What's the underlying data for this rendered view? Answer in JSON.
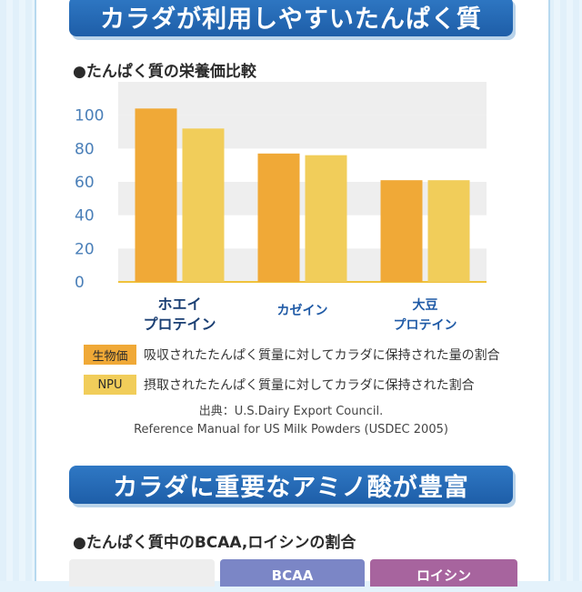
{
  "banner_top": {
    "title": "カラダが利用しやすいたんぱく質"
  },
  "section1": {
    "title": "●たんぱく質の栄養価比較"
  },
  "chart_data": {
    "type": "bar",
    "categories": [
      "ホエイ\nプロテイン",
      "カゼイン",
      "大豆\nプロテイン"
    ],
    "series": [
      {
        "name": "生物価",
        "values": [
          104,
          77,
          61
        ],
        "color": "#f0a937"
      },
      {
        "name": "NPU",
        "values": [
          92,
          76,
          61
        ],
        "color": "#f1cd5a"
      }
    ],
    "yticks": [
      0,
      20,
      40,
      60,
      80,
      100
    ],
    "ylim": [
      0,
      120
    ],
    "grid_bands": true,
    "legend_position": "bottom"
  },
  "legend": [
    {
      "label": "生物価",
      "description": "吸収されたたんぱく質量に対してカラダに保持された量の割合",
      "color": "#f0a937"
    },
    {
      "label": "NPU",
      "description": "摂取されたたんぱく質量に対してカラダに保持された割合",
      "color": "#f1cd5a"
    }
  ],
  "source": {
    "line1": "出典：U.S.Dairy Export Council.",
    "line2": "Reference Manual for US Milk Powders (USDEC 2005)"
  },
  "banner_bottom": {
    "title": "カラダに重要なアミノ酸が豊富"
  },
  "section2": {
    "title": "●たんぱく質中のBCAA,ロイシンの割合"
  },
  "table_header": {
    "col1": "",
    "col2": "BCAA",
    "col3": "ロイシン"
  },
  "colors": {
    "banner": "#2366b1",
    "axis_text": "#4a7fb8",
    "category_text": "#1f5aa6",
    "grid_band": "#eeeeee"
  }
}
